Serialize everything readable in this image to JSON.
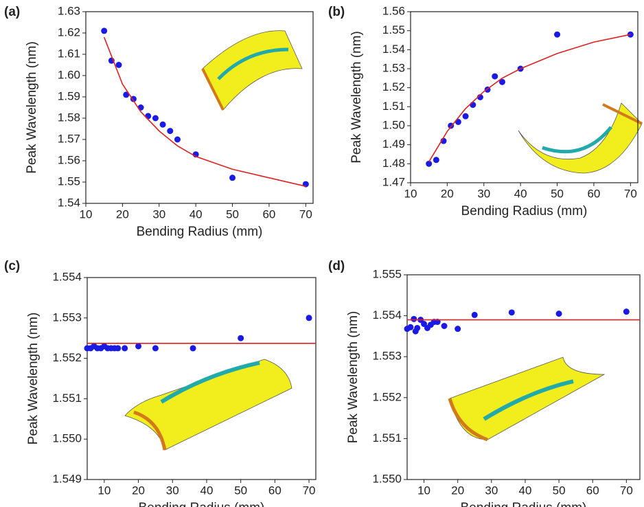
{
  "chart_data": [
    {
      "type": "scatter",
      "label": "(a)",
      "xlabel": "Bending Radius (mm)",
      "ylabel": "Peak Wavelength (nm)",
      "xlim": [
        10,
        72
      ],
      "ylim": [
        1.54,
        1.63
      ],
      "xticks": [
        10,
        20,
        30,
        40,
        50,
        60,
        70
      ],
      "yticks": [
        1.54,
        1.55,
        1.56,
        1.57,
        1.58,
        1.59,
        {
          "value": 1.6,
          "label": "1.60"
        },
        1.61,
        1.62,
        1.63
      ],
      "series": [
        {
          "mode": "markers",
          "color": "#1a1ae6",
          "x": [
            15,
            17,
            19,
            21,
            23,
            25,
            27,
            29,
            31,
            33,
            35,
            40,
            50,
            70
          ],
          "values": [
            1.621,
            1.607,
            1.605,
            1.591,
            1.589,
            1.585,
            1.581,
            1.58,
            1.577,
            1.574,
            1.57,
            1.563,
            1.552,
            1.549
          ]
        },
        {
          "mode": "line",
          "color": "#e02020",
          "x": [
            15,
            20,
            25,
            30,
            35,
            40,
            50,
            60,
            70
          ],
          "values": [
            1.618,
            1.596,
            1.583,
            1.574,
            1.567,
            1.562,
            1.556,
            1.552,
            1.548
          ]
        }
      ]
    },
    {
      "type": "scatter",
      "label": "(b)",
      "xlabel": "Bending Radius (mm)",
      "ylabel": "Peak Wavelength (nm)",
      "xlim": [
        10,
        72
      ],
      "ylim": [
        1.47,
        1.56
      ],
      "xticks": [
        10,
        20,
        30,
        40,
        50,
        60,
        70
      ],
      "yticks": [
        1.47,
        1.48,
        1.49,
        {
          "value": 1.5,
          "label": "1.50"
        },
        1.51,
        1.52,
        1.53,
        1.54,
        1.55,
        1.56
      ],
      "series": [
        {
          "mode": "markers",
          "color": "#1a1ae6",
          "x": [
            15,
            17,
            19,
            21,
            23,
            25,
            27,
            29,
            31,
            33,
            35,
            40,
            50,
            70
          ],
          "values": [
            1.48,
            1.482,
            1.492,
            1.5,
            1.502,
            1.505,
            1.511,
            1.515,
            1.519,
            1.526,
            1.523,
            1.53,
            1.548,
            1.548
          ]
        },
        {
          "mode": "line",
          "color": "#e02020",
          "x": [
            15,
            20,
            25,
            30,
            35,
            40,
            50,
            60,
            70
          ],
          "values": [
            1.481,
            1.497,
            1.509,
            1.518,
            1.525,
            1.53,
            1.538,
            1.544,
            1.548
          ]
        }
      ]
    },
    {
      "type": "scatter",
      "label": "(c)",
      "xlabel": "Bending Radius (mm)",
      "ylabel": "Peak Wavelength (nm)",
      "xlim": [
        5,
        72
      ],
      "ylim": [
        1.549,
        1.554
      ],
      "xticks": [
        10,
        20,
        30,
        40,
        50,
        60,
        70
      ],
      "yticks": [
        1.549,
        {
          "value": 1.55,
          "label": "1.550"
        },
        1.551,
        1.552,
        1.553,
        1.554
      ],
      "series": [
        {
          "mode": "markers",
          "color": "#1a1ae6",
          "x": [
            5,
            6,
            7,
            8,
            9,
            10,
            11,
            12,
            13,
            14,
            16,
            20,
            25,
            36,
            50,
            70
          ],
          "values": [
            1.55225,
            1.55225,
            1.5523,
            1.55225,
            1.55225,
            1.5523,
            1.55225,
            1.55225,
            1.55225,
            1.55225,
            1.55225,
            1.5523,
            1.55225,
            1.55225,
            1.5525,
            1.553
          ]
        },
        {
          "mode": "line",
          "color": "#e02020",
          "x": [
            5,
            72
          ],
          "values": [
            1.55237,
            1.55237
          ]
        }
      ]
    },
    {
      "type": "scatter",
      "label": "(d)",
      "xlabel": "Bending Radius (mm)",
      "ylabel": "Peak Wavelength (nm)",
      "xlim": [
        5,
        74
      ],
      "ylim": [
        1.55,
        1.555
      ],
      "xticks": [
        10,
        20,
        30,
        40,
        50,
        60,
        70
      ],
      "yticks": [
        {
          "value": 1.55,
          "label": "1.550"
        },
        1.551,
        1.552,
        1.553,
        1.554,
        1.555
      ],
      "series": [
        {
          "mode": "markers",
          "color": "#1a1ae6",
          "x": [
            5,
            6,
            7,
            7.5,
            8,
            9,
            10,
            11,
            12,
            13,
            14,
            16,
            20,
            25,
            36,
            50,
            70
          ],
          "values": [
            1.55368,
            1.55372,
            1.55392,
            1.55362,
            1.5537,
            1.5539,
            1.5538,
            1.5537,
            1.55378,
            1.55385,
            1.55385,
            1.55375,
            1.55368,
            1.55402,
            1.55408,
            1.55405,
            1.5541
          ]
        },
        {
          "mode": "line",
          "color": "#e02020",
          "x": [
            5,
            74
          ],
          "values": [
            1.5539,
            1.5539
          ]
        }
      ]
    }
  ]
}
